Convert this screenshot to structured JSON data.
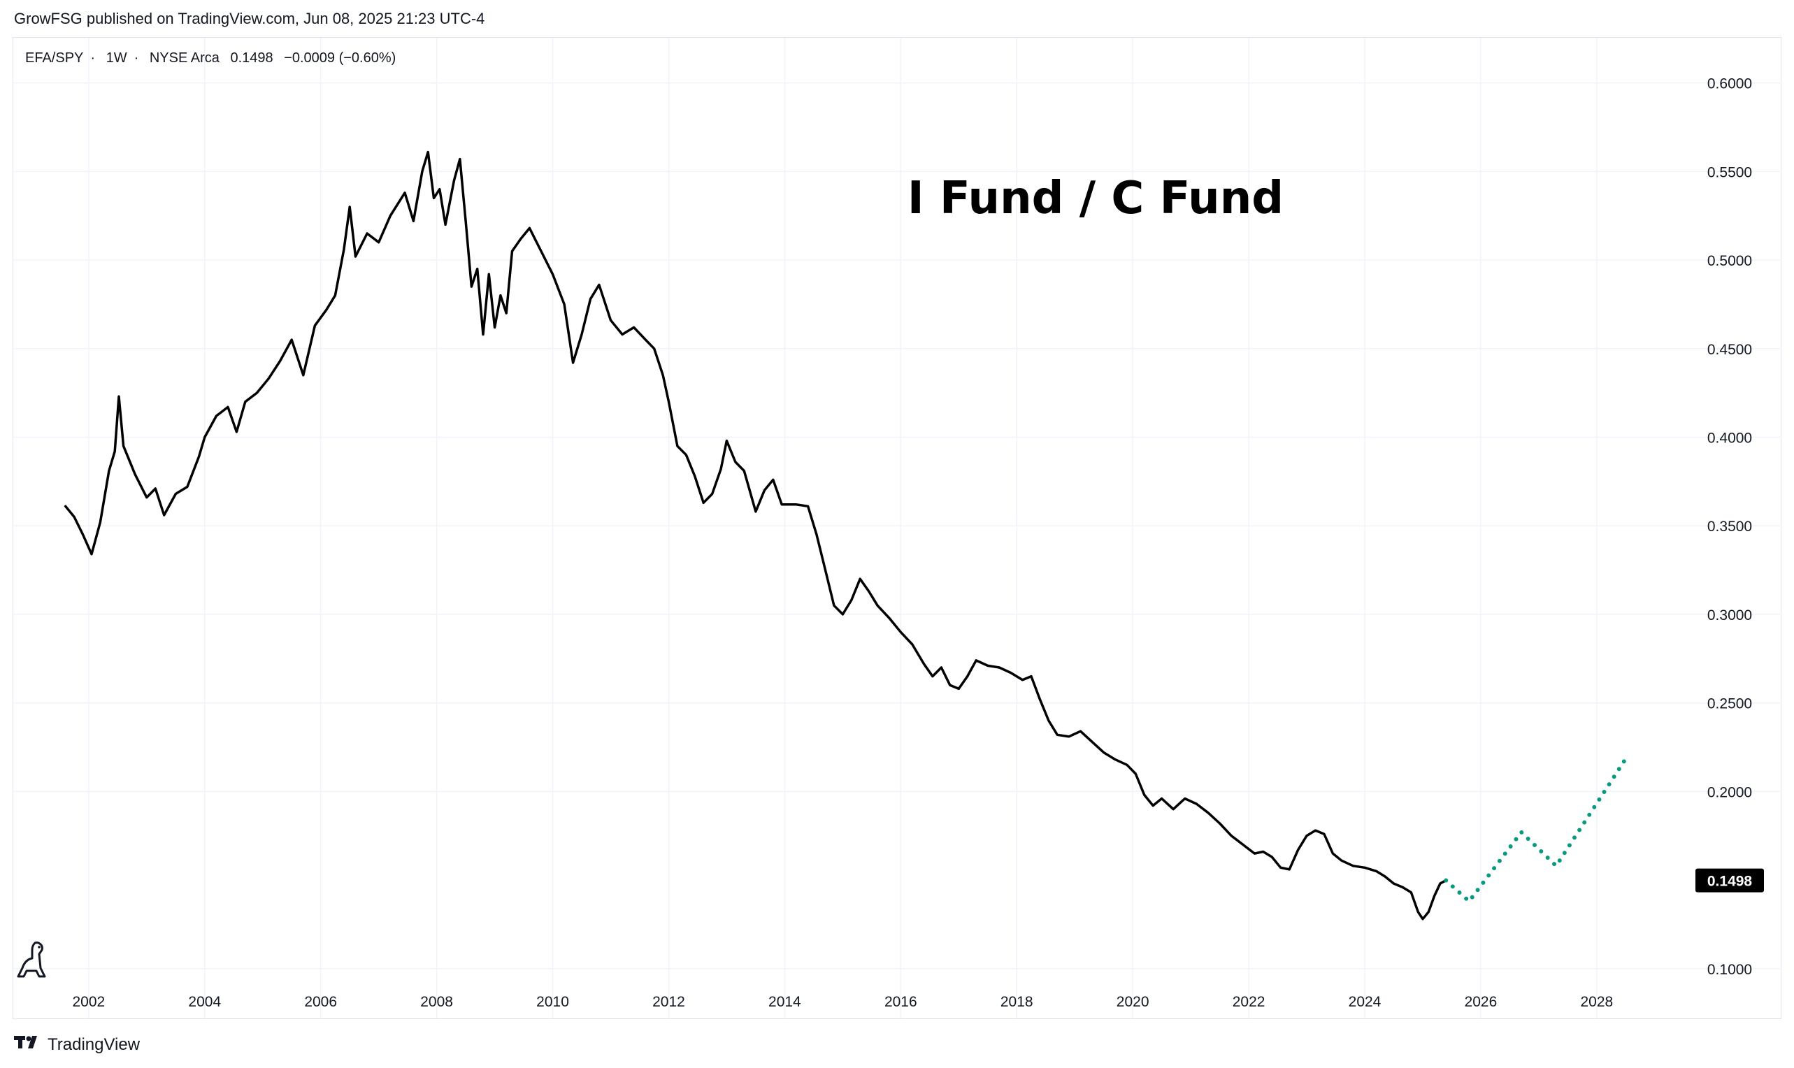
{
  "header": {
    "publisher_line": "GrowFSG published on TradingView.com, Jun 08, 2025 21:23 UTC-4"
  },
  "legend": {
    "symbol": "EFA/SPY",
    "interval": "1W",
    "exchange": "NYSE Arca",
    "last": "0.1498",
    "change": "−0.0009 (−0.60%)"
  },
  "footer": {
    "brand": "TradingView"
  },
  "icons": {
    "brand_logo": "tradingview-logo-icon",
    "mascot": "dinosaur-icon"
  },
  "colors": {
    "price_line": "#000000",
    "projection": "#089981",
    "grid": "#f0f3fa",
    "label_bg": "#000000",
    "label_text": "#ffffff"
  },
  "chart_data": {
    "type": "line",
    "title": "I Fund / C Fund",
    "xlabel": "",
    "ylabel": "",
    "xlim": [
      2000.7,
      2029.4
    ],
    "ylim": [
      0.0865,
      0.6255
    ],
    "grid": true,
    "legend": "none",
    "x_ticks": [
      "2002",
      "2004",
      "2006",
      "2008",
      "2010",
      "2012",
      "2014",
      "2016",
      "2018",
      "2020",
      "2022",
      "2024",
      "2026",
      "2028"
    ],
    "y_ticks": [
      "0.6000",
      "0.5500",
      "0.5000",
      "0.4500",
      "0.4000",
      "0.3500",
      "0.3000",
      "0.2500",
      "0.2000",
      "0.1000"
    ],
    "last_value_label": "0.1498",
    "series": [
      {
        "style": "solid",
        "points": [
          [
            2001.6,
            0.361
          ],
          [
            2001.75,
            0.355
          ],
          [
            2001.9,
            0.345
          ],
          [
            2002.05,
            0.334
          ],
          [
            2002.2,
            0.352
          ],
          [
            2002.35,
            0.381
          ],
          [
            2002.45,
            0.392
          ],
          [
            2002.52,
            0.423
          ],
          [
            2002.6,
            0.395
          ],
          [
            2002.8,
            0.379
          ],
          [
            2003.0,
            0.366
          ],
          [
            2003.15,
            0.371
          ],
          [
            2003.3,
            0.356
          ],
          [
            2003.5,
            0.368
          ],
          [
            2003.7,
            0.372
          ],
          [
            2003.9,
            0.389
          ],
          [
            2004.0,
            0.4
          ],
          [
            2004.2,
            0.412
          ],
          [
            2004.4,
            0.417
          ],
          [
            2004.55,
            0.403
          ],
          [
            2004.7,
            0.42
          ],
          [
            2004.9,
            0.425
          ],
          [
            2005.1,
            0.433
          ],
          [
            2005.3,
            0.443
          ],
          [
            2005.5,
            0.455
          ],
          [
            2005.7,
            0.435
          ],
          [
            2005.9,
            0.463
          ],
          [
            2006.1,
            0.472
          ],
          [
            2006.25,
            0.48
          ],
          [
            2006.4,
            0.506
          ],
          [
            2006.5,
            0.53
          ],
          [
            2006.6,
            0.502
          ],
          [
            2006.8,
            0.515
          ],
          [
            2007.0,
            0.51
          ],
          [
            2007.2,
            0.525
          ],
          [
            2007.45,
            0.538
          ],
          [
            2007.6,
            0.522
          ],
          [
            2007.75,
            0.55
          ],
          [
            2007.85,
            0.561
          ],
          [
            2007.95,
            0.535
          ],
          [
            2008.05,
            0.54
          ],
          [
            2008.15,
            0.52
          ],
          [
            2008.3,
            0.545
          ],
          [
            2008.4,
            0.557
          ],
          [
            2008.5,
            0.522
          ],
          [
            2008.6,
            0.485
          ],
          [
            2008.7,
            0.495
          ],
          [
            2008.8,
            0.458
          ],
          [
            2008.9,
            0.492
          ],
          [
            2009.0,
            0.462
          ],
          [
            2009.1,
            0.48
          ],
          [
            2009.2,
            0.47
          ],
          [
            2009.3,
            0.505
          ],
          [
            2009.45,
            0.512
          ],
          [
            2009.6,
            0.518
          ],
          [
            2009.8,
            0.505
          ],
          [
            2010.0,
            0.492
          ],
          [
            2010.2,
            0.475
          ],
          [
            2010.35,
            0.442
          ],
          [
            2010.5,
            0.458
          ],
          [
            2010.65,
            0.478
          ],
          [
            2010.8,
            0.486
          ],
          [
            2011.0,
            0.466
          ],
          [
            2011.2,
            0.458
          ],
          [
            2011.4,
            0.462
          ],
          [
            2011.6,
            0.455
          ],
          [
            2011.75,
            0.45
          ],
          [
            2011.9,
            0.435
          ],
          [
            2012.0,
            0.42
          ],
          [
            2012.15,
            0.395
          ],
          [
            2012.3,
            0.39
          ],
          [
            2012.45,
            0.378
          ],
          [
            2012.6,
            0.363
          ],
          [
            2012.75,
            0.368
          ],
          [
            2012.9,
            0.382
          ],
          [
            2013.0,
            0.398
          ],
          [
            2013.15,
            0.386
          ],
          [
            2013.3,
            0.381
          ],
          [
            2013.5,
            0.358
          ],
          [
            2013.65,
            0.37
          ],
          [
            2013.8,
            0.376
          ],
          [
            2013.95,
            0.362
          ],
          [
            2014.2,
            0.362
          ],
          [
            2014.4,
            0.361
          ],
          [
            2014.55,
            0.345
          ],
          [
            2014.7,
            0.325
          ],
          [
            2014.85,
            0.305
          ],
          [
            2015.0,
            0.3
          ],
          [
            2015.15,
            0.308
          ],
          [
            2015.3,
            0.32
          ],
          [
            2015.45,
            0.313
          ],
          [
            2015.6,
            0.305
          ],
          [
            2015.8,
            0.298
          ],
          [
            2016.0,
            0.29
          ],
          [
            2016.2,
            0.283
          ],
          [
            2016.4,
            0.272
          ],
          [
            2016.55,
            0.265
          ],
          [
            2016.7,
            0.27
          ],
          [
            2016.85,
            0.26
          ],
          [
            2017.0,
            0.258
          ],
          [
            2017.15,
            0.265
          ],
          [
            2017.3,
            0.274
          ],
          [
            2017.5,
            0.271
          ],
          [
            2017.7,
            0.27
          ],
          [
            2017.9,
            0.267
          ],
          [
            2018.1,
            0.263
          ],
          [
            2018.25,
            0.265
          ],
          [
            2018.4,
            0.252
          ],
          [
            2018.55,
            0.24
          ],
          [
            2018.7,
            0.232
          ],
          [
            2018.9,
            0.231
          ],
          [
            2019.1,
            0.234
          ],
          [
            2019.3,
            0.228
          ],
          [
            2019.5,
            0.222
          ],
          [
            2019.7,
            0.218
          ],
          [
            2019.9,
            0.215
          ],
          [
            2020.05,
            0.21
          ],
          [
            2020.2,
            0.198
          ],
          [
            2020.35,
            0.192
          ],
          [
            2020.5,
            0.196
          ],
          [
            2020.7,
            0.19
          ],
          [
            2020.9,
            0.196
          ],
          [
            2021.1,
            0.193
          ],
          [
            2021.3,
            0.188
          ],
          [
            2021.5,
            0.182
          ],
          [
            2021.7,
            0.175
          ],
          [
            2021.9,
            0.17
          ],
          [
            2022.1,
            0.165
          ],
          [
            2022.25,
            0.166
          ],
          [
            2022.4,
            0.163
          ],
          [
            2022.55,
            0.157
          ],
          [
            2022.7,
            0.156
          ],
          [
            2022.85,
            0.167
          ],
          [
            2023.0,
            0.175
          ],
          [
            2023.15,
            0.178
          ],
          [
            2023.3,
            0.176
          ],
          [
            2023.45,
            0.165
          ],
          [
            2023.6,
            0.161
          ],
          [
            2023.8,
            0.158
          ],
          [
            2024.0,
            0.157
          ],
          [
            2024.2,
            0.155
          ],
          [
            2024.35,
            0.152
          ],
          [
            2024.5,
            0.148
          ],
          [
            2024.65,
            0.146
          ],
          [
            2024.8,
            0.143
          ],
          [
            2024.92,
            0.132
          ],
          [
            2025.0,
            0.128
          ],
          [
            2025.1,
            0.132
          ],
          [
            2025.2,
            0.141
          ],
          [
            2025.3,
            0.148
          ],
          [
            2025.4,
            0.1498
          ]
        ]
      },
      {
        "style": "dotted",
        "points": [
          [
            2025.4,
            0.1498
          ],
          [
            2025.8,
            0.138
          ],
          [
            2026.7,
            0.177
          ],
          [
            2027.3,
            0.158
          ],
          [
            2028.55,
            0.221
          ]
        ]
      }
    ]
  }
}
